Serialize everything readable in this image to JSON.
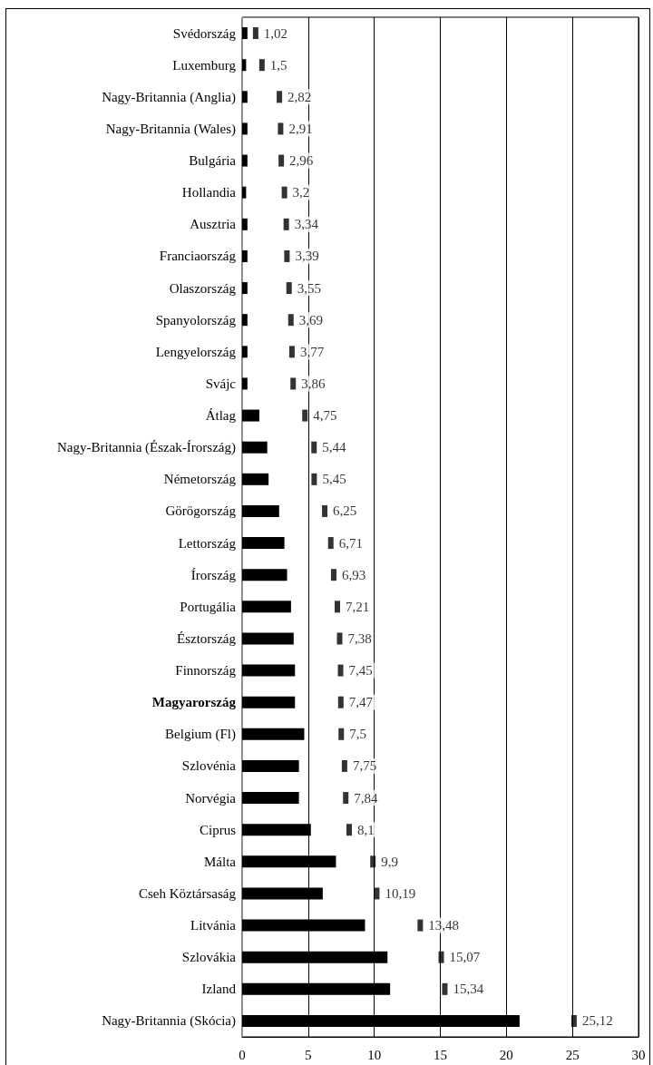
{
  "chart_data": {
    "type": "bar",
    "orientation": "horizontal",
    "categories": [
      "Svédország",
      "Luxemburg",
      "Nagy-Britannia (Anglia)",
      "Nagy-Britannia (Wales)",
      "Bulgária",
      "Hollandia",
      "Ausztria",
      "Franciaország",
      "Olaszország",
      "Spanyolország",
      "Lengyelország",
      "Svájc",
      "Átlag",
      "Nagy-Britannia (Észak-Írország)",
      "Németország",
      "Görögország",
      "Lettország",
      "Írország",
      "Portugália",
      "Észtország",
      "Finnország",
      "Magyarország",
      "Belgium (Fl)",
      "Szlovénia",
      "Norvégia",
      "Ciprus",
      "Málta",
      "Cseh Köztársaság",
      "Litvánia",
      "Szlovákia",
      "Izland",
      "Nagy-Britannia (Skócia)"
    ],
    "series": [
      {
        "color": "#000000",
        "values": [
          0.4,
          0.3,
          0.4,
          0.4,
          0.4,
          0.3,
          0.4,
          0.4,
          0.4,
          0.4,
          0.4,
          0.4,
          1.3,
          1.9,
          2.0,
          2.8,
          3.2,
          3.4,
          3.7,
          3.9,
          4.0,
          4.0,
          4.7,
          4.3,
          4.3,
          5.2,
          7.1,
          6.1,
          9.3,
          11.0,
          11.2,
          21.0
        ]
      },
      {
        "type": "scatter",
        "color": "#000000",
        "values": [
          1.02,
          1.5,
          2.82,
          2.91,
          2.96,
          3.2,
          3.34,
          3.39,
          3.55,
          3.69,
          3.77,
          3.86,
          4.75,
          5.44,
          5.45,
          6.25,
          6.71,
          6.93,
          7.21,
          7.38,
          7.45,
          7.47,
          7.5,
          7.75,
          7.84,
          8.1,
          9.9,
          10.19,
          13.48,
          15.07,
          15.34,
          25.12
        ],
        "value_labels": [
          "1,02",
          "1,5",
          "2,82",
          "2,91",
          "2,96",
          "3,2",
          "3,34",
          "3,39",
          "3,55",
          "3,69",
          "3,77",
          "3,86",
          "4,75",
          "5,44",
          "5,45",
          "6,25",
          "6,71",
          "6,93",
          "7,21",
          "7,38",
          "7,45",
          "7,47",
          "7,5",
          "7,75",
          "7,84",
          "8,1",
          "9,9",
          "10,19",
          "13,48",
          "15,07",
          "15,34",
          "25,12"
        ]
      }
    ],
    "xlim": [
      0,
      30
    ],
    "xticks": [
      0,
      5,
      10,
      15,
      20,
      25,
      30
    ],
    "grid": "x",
    "marker": "square"
  }
}
